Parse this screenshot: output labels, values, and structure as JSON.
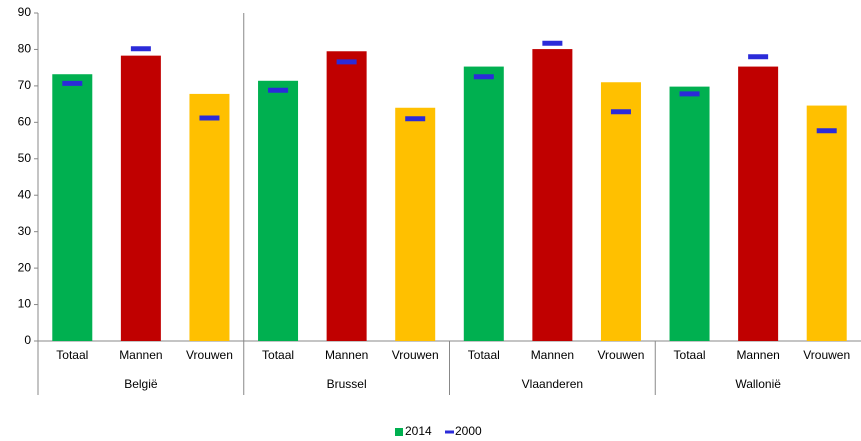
{
  "chart_data": {
    "type": "bar",
    "categories": [
      "Totaal",
      "Mannen",
      "Vrouwen",
      "Totaal",
      "Mannen",
      "Vrouwen",
      "Totaal",
      "Mannen",
      "Vrouwen",
      "Totaal",
      "Mannen",
      "Vrouwen"
    ],
    "groups": [
      "België",
      "Brussel",
      "Vlaanderen",
      "Wallonië"
    ],
    "series": [
      {
        "name": "2014",
        "color": "#00b050",
        "colors": [
          "#00b050",
          "#c00000",
          "#ffc000",
          "#00b050",
          "#c00000",
          "#ffc000",
          "#00b050",
          "#c00000",
          "#ffc000",
          "#00b050",
          "#c00000",
          "#ffc000"
        ],
        "values": [
          73.2,
          78.3,
          67.8,
          71.4,
          79.5,
          64.0,
          75.3,
          80.1,
          71.0,
          69.8,
          75.3,
          64.6
        ]
      },
      {
        "name": "2000",
        "color": "#2b2bd9",
        "marker": "dash",
        "values": [
          70.7,
          80.2,
          61.2,
          68.8,
          76.6,
          61.0,
          72.5,
          81.7,
          62.9,
          67.8,
          78.0,
          57.7
        ]
      }
    ],
    "ylim": [
      0,
      90
    ],
    "yticks": [
      0,
      10,
      20,
      30,
      40,
      50,
      60,
      70,
      80,
      90
    ],
    "grid": false,
    "legend": "bottom"
  }
}
